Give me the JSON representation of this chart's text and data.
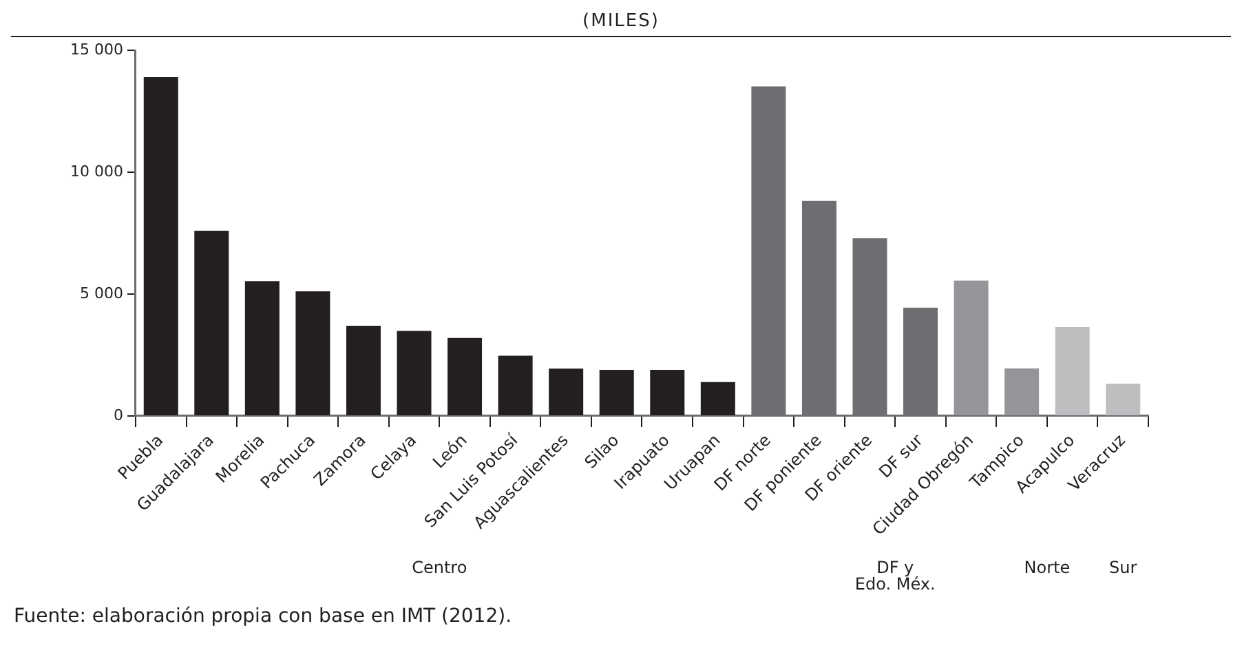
{
  "chart_data": {
    "type": "bar",
    "title": "(MILES)",
    "categories": [
      "Puebla",
      "Guadalajara",
      "Morelia",
      "Pachuca",
      "Zamora",
      "Celaya",
      "León",
      "San Luis Potosí",
      "Aguascalientes",
      "Silao",
      "Irapuato",
      "Uruapan",
      "DF norte",
      "DF poniente",
      "DF oriente",
      "DF sur",
      "Ciudad Obregón",
      "Tampico",
      "Acapulco",
      "Veracruz"
    ],
    "values": [
      13900,
      7600,
      5530,
      5110,
      3700,
      3490,
      3200,
      2470,
      1940,
      1890,
      1890,
      1390,
      13520,
      8820,
      7290,
      4440,
      5550,
      1950,
      3640,
      1320
    ],
    "colors": [
      "#231f20",
      "#231f20",
      "#231f20",
      "#231f20",
      "#231f20",
      "#231f20",
      "#231f20",
      "#231f20",
      "#231f20",
      "#231f20",
      "#231f20",
      "#231f20",
      "#6d6e71",
      "#6d6e71",
      "#6d6e71",
      "#6d6e71",
      "#939598",
      "#939598",
      "#bcbec0",
      "#bcbec0"
    ],
    "ylim": [
      0,
      15000
    ],
    "yticks": [
      0,
      {
        "value": 5000,
        "label": "5 000"
      },
      {
        "value": 10000,
        "label": "10 000"
      },
      {
        "value": 15000,
        "label": "15 000"
      }
    ],
    "grid": false,
    "legend": false,
    "annotations": [
      "Centro",
      "DF y\nEdo. Méx.",
      "Norte",
      "Sur",
      "Fuente: elaboración propia con base en IMT (2012)."
    ]
  }
}
